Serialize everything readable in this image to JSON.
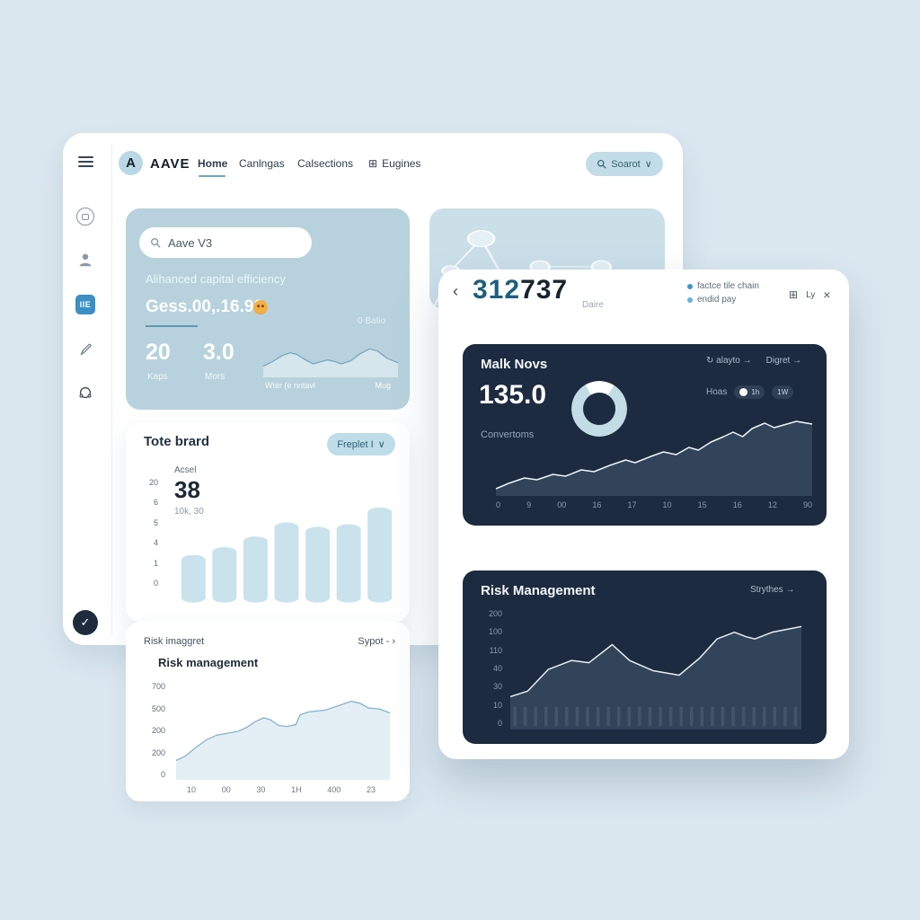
{
  "nav": {
    "brand": "AAVE",
    "logo_letter": "A",
    "items": [
      {
        "label": "Home"
      },
      {
        "label": "Canlngas"
      },
      {
        "label": "Calsections"
      },
      {
        "label": "Eugines"
      }
    ],
    "grid_glyph": "⊞",
    "search_label": "Soarot",
    "chevron": "∨"
  },
  "hero": {
    "search_value": "Aave V3",
    "line1": "Alihanced capital efficiency",
    "line2": "Gess.00,.16.90",
    "ratio_label": "0 Batio",
    "stats": [
      {
        "value": "20",
        "label": "Kaps"
      },
      {
        "value": "3.0",
        "label": "Mors"
      }
    ]
  },
  "tote": {
    "title": "Tote brard",
    "pill_label": "Freplet I",
    "chevron": "∨",
    "asset_label": "Acsel",
    "big_value": "38",
    "sub_value": "10k, 30"
  },
  "risk_light": {
    "header": "Risk imaggret",
    "link": "Sypot - ›",
    "title": "Risk management"
  },
  "panel": {
    "back": "‹",
    "big_left": "312",
    "big_right": "737",
    "suffix": "Daire",
    "bullets": [
      {
        "label": "factce tile chain",
        "color": "#3e97c9"
      },
      {
        "label": "endid pay",
        "color": "#69b3d8"
      }
    ],
    "tool_grid": "⊞",
    "tool_ly": "Ly",
    "tool_close": "×"
  },
  "mark_card": {
    "title": "Malk Novs",
    "refresh_glyph": "↻",
    "link1": "alayto",
    "link2": "Digret",
    "arrow": "→",
    "value": "135.0",
    "value_label": "Convertoms",
    "toggle_label": "Hoas",
    "toggle_a": "1h",
    "toggle_b": "1W"
  },
  "risk_dark": {
    "title": "Risk Management",
    "link": "Strythes",
    "arrow": "→"
  },
  "fab_check": "✓",
  "chart_data": [
    {
      "id": "hero-spark",
      "type": "area",
      "points": [
        [
          0,
          72
        ],
        [
          7,
          60
        ],
        [
          14,
          45
        ],
        [
          20,
          38
        ],
        [
          25,
          42
        ],
        [
          31,
          55
        ],
        [
          37,
          66
        ],
        [
          43,
          60
        ],
        [
          48,
          56
        ],
        [
          53,
          60
        ],
        [
          58,
          66
        ],
        [
          65,
          58
        ],
        [
          72,
          40
        ],
        [
          79,
          28
        ],
        [
          85,
          34
        ],
        [
          92,
          52
        ],
        [
          100,
          63
        ]
      ],
      "line_color": "#76a3bf",
      "fill_color": "rgba(238,247,250,0.55)",
      "stroke_width": 1.2,
      "captions": [
        "Wter (e nntavl",
        "Mug"
      ]
    },
    {
      "id": "tote-bars",
      "type": "bar",
      "values": [
        38,
        47,
        59,
        75,
        70,
        73,
        92
      ],
      "max": 100,
      "fill_color": "#c9e2ec",
      "y_labels": [
        "20",
        "6",
        "5",
        "4",
        "1",
        "0"
      ]
    },
    {
      "id": "risk-light",
      "type": "area",
      "points": [
        [
          0,
          80
        ],
        [
          4,
          76
        ],
        [
          9,
          67
        ],
        [
          14,
          59
        ],
        [
          19,
          54
        ],
        [
          24,
          52
        ],
        [
          29,
          50
        ],
        [
          33,
          46
        ],
        [
          37,
          40
        ],
        [
          41,
          36
        ],
        [
          44,
          38
        ],
        [
          48,
          44
        ],
        [
          52,
          45
        ],
        [
          56,
          43
        ],
        [
          58,
          33
        ],
        [
          62,
          30
        ],
        [
          66,
          29
        ],
        [
          70,
          28
        ],
        [
          74,
          25
        ],
        [
          78,
          22
        ],
        [
          82,
          19
        ],
        [
          86,
          21
        ],
        [
          90,
          26
        ],
        [
          95,
          27
        ],
        [
          100,
          31
        ]
      ],
      "line_color": "#85b4ce",
      "fill_color": "#e3eef5",
      "stroke_width": 1.3,
      "y_labels": [
        "700",
        "500",
        "200",
        "200",
        "0"
      ],
      "x_labels": [
        "10",
        "00",
        "30",
        "1H",
        "400",
        "23"
      ]
    },
    {
      "id": "conv-chart",
      "type": "area",
      "points": [
        [
          0,
          92
        ],
        [
          4,
          86
        ],
        [
          9,
          80
        ],
        [
          13,
          82
        ],
        [
          18,
          76
        ],
        [
          22,
          78
        ],
        [
          27,
          71
        ],
        [
          31,
          73
        ],
        [
          36,
          66
        ],
        [
          41,
          60
        ],
        [
          44,
          63
        ],
        [
          49,
          56
        ],
        [
          53,
          51
        ],
        [
          57,
          54
        ],
        [
          61,
          46
        ],
        [
          64,
          49
        ],
        [
          68,
          40
        ],
        [
          72,
          34
        ],
        [
          75,
          29
        ],
        [
          78,
          34
        ],
        [
          81,
          25
        ],
        [
          85,
          19
        ],
        [
          88,
          24
        ],
        [
          91,
          21
        ],
        [
          95,
          17
        ],
        [
          100,
          20
        ]
      ],
      "line_color": "#eef3f7",
      "fill_color": "#31445a",
      "stroke_width": 1.5,
      "x_labels": [
        "0",
        "9",
        "00",
        "16",
        "17",
        "10",
        "15",
        "16",
        "12",
        "90"
      ]
    },
    {
      "id": "risk-dark",
      "type": "area",
      "points": [
        [
          0,
          71
        ],
        [
          6,
          66
        ],
        [
          13,
          47
        ],
        [
          21,
          39
        ],
        [
          27,
          41
        ],
        [
          35,
          25
        ],
        [
          41,
          39
        ],
        [
          49,
          48
        ],
        [
          58,
          52
        ],
        [
          65,
          37
        ],
        [
          71,
          20
        ],
        [
          77,
          14
        ],
        [
          81,
          18
        ],
        [
          84,
          20
        ],
        [
          90,
          14
        ],
        [
          96,
          11
        ],
        [
          100,
          9
        ]
      ],
      "line_color": "#e8eef4",
      "fill_color": "#31445a",
      "stroke_width": 1.5,
      "ticks": 28,
      "tick_color": "#42556c",
      "y_labels": [
        "200",
        "100",
        "110",
        "40",
        "30",
        "10",
        "0"
      ]
    }
  ]
}
